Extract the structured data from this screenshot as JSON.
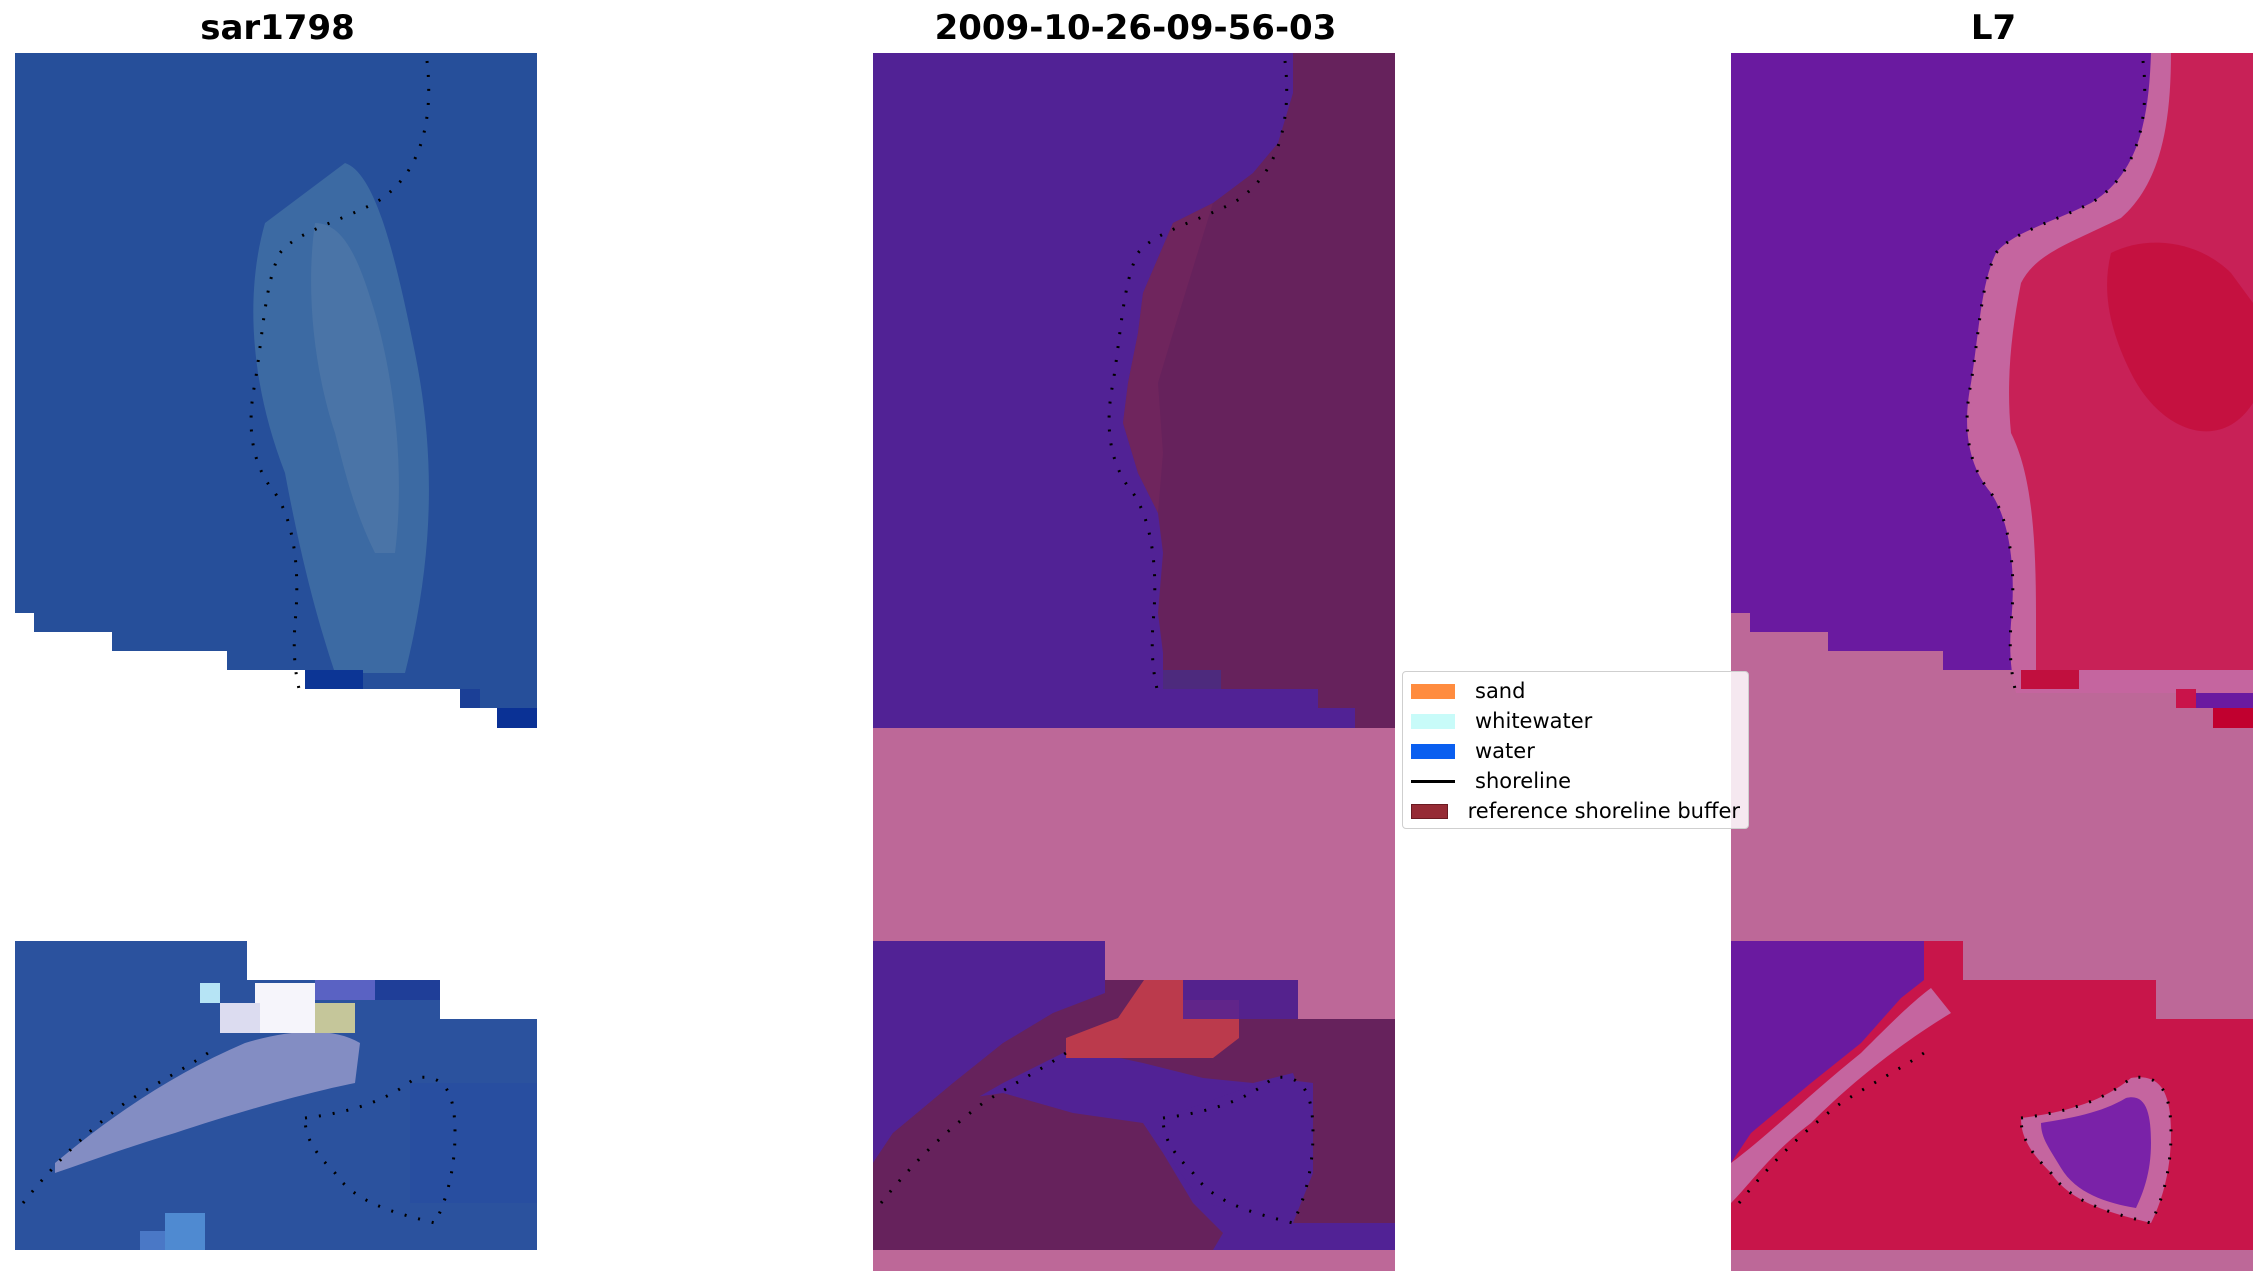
{
  "panels": [
    {
      "title": "sar1798"
    },
    {
      "title": "2009-10-26-09-56-03"
    },
    {
      "title": "L7"
    }
  ],
  "legend": {
    "items": [
      {
        "label": "sand",
        "kind": "patch",
        "color": "#ff8c3f"
      },
      {
        "label": "whitewater",
        "kind": "patch",
        "color": "#c8fbf9"
      },
      {
        "label": "water",
        "kind": "patch",
        "color": "#0a5ff0"
      },
      {
        "label": "shoreline",
        "kind": "line",
        "color": "#000000"
      },
      {
        "label": "reference shoreline buffer",
        "kind": "patch",
        "color": "#962b35"
      }
    ]
  },
  "colors": {
    "satellite_water": "#264f9a",
    "satellite_nearshore": "#3d69a8",
    "satellite_whitewater": "#f1f1f7",
    "class_water": "#512295",
    "class_land": "#66225c",
    "class_nodata": "#bd6898",
    "class_buffer": "#bb3a4c",
    "index_water": "#6a1aa0",
    "index_land": "#c8154a",
    "index_transition": "#c5659f",
    "index_nodata": "#bd6898",
    "shoreline_dots": "#000000"
  }
}
